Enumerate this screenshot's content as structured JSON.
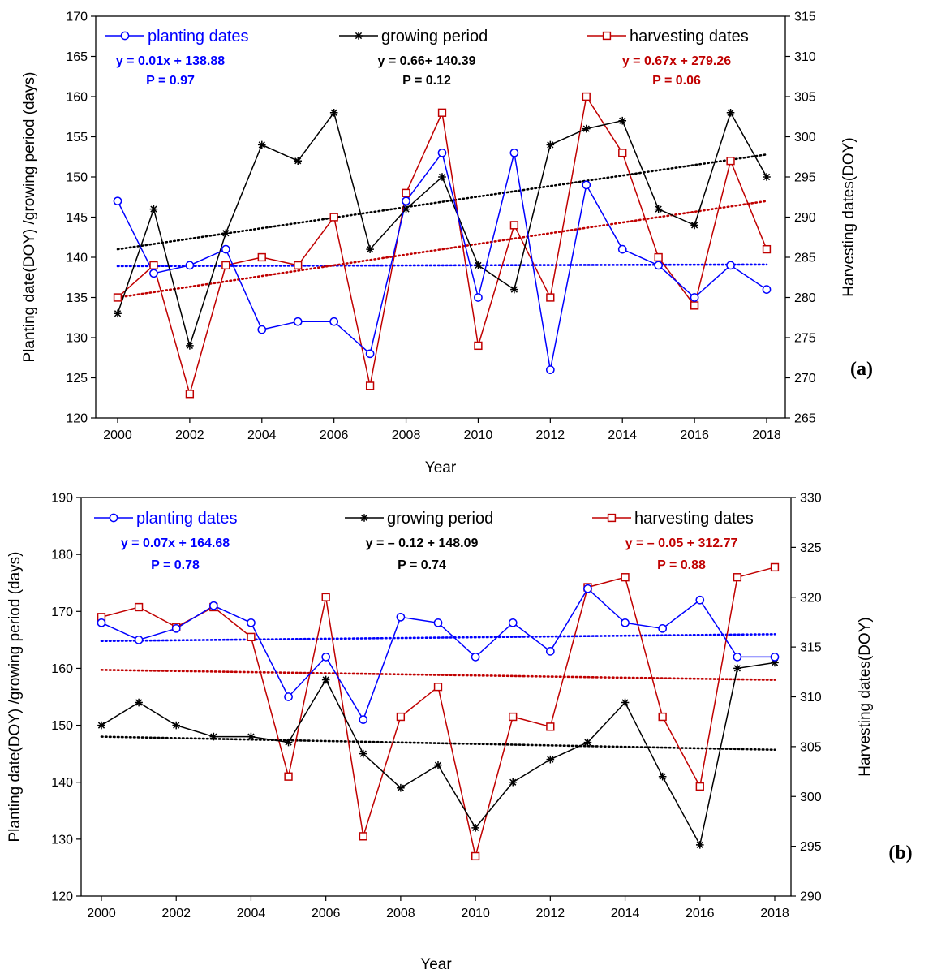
{
  "colors": {
    "planting": "#0000ff",
    "growing": "#000000",
    "harvesting": "#c00000"
  },
  "chart_data": [
    {
      "type": "line",
      "panel_label": "(a)",
      "xlabel": "Year",
      "ylabel": "Planting date(DOY) /growing period (days)",
      "y2label": "Harvesting dates(DOY)",
      "xlim": [
        2000,
        2018
      ],
      "xticks": [
        2000,
        2002,
        2004,
        2006,
        2008,
        2010,
        2012,
        2014,
        2016,
        2018
      ],
      "ylim": [
        120,
        170
      ],
      "yticks": [
        120,
        125,
        130,
        135,
        140,
        145,
        150,
        155,
        160,
        165,
        170
      ],
      "y2lim": [
        265,
        315
      ],
      "y2ticks": [
        265,
        270,
        275,
        280,
        285,
        290,
        295,
        300,
        305,
        310,
        315
      ],
      "legend": "top",
      "x": [
        2000,
        2001,
        2002,
        2003,
        2004,
        2005,
        2006,
        2007,
        2008,
        2009,
        2010,
        2011,
        2012,
        2013,
        2014,
        2015,
        2016,
        2017,
        2018
      ],
      "series": [
        {
          "key": "planting",
          "name": "planting dates",
          "axis": "left",
          "marker": "circle",
          "values": [
            147,
            138,
            139,
            141,
            131,
            132,
            132,
            128,
            147,
            153,
            135,
            153,
            126,
            149,
            141,
            139,
            135,
            139,
            136
          ],
          "trend": [
            138.9,
            139.1
          ],
          "equation": "y = 0.01x + 138.88",
          "p_value": "P = 0.97"
        },
        {
          "key": "growing",
          "name": "growing period",
          "axis": "left",
          "marker": "star",
          "values": [
            133,
            146,
            129,
            143,
            154,
            152,
            158,
            141,
            146,
            150,
            139,
            136,
            154,
            156,
            157,
            146,
            144,
            158,
            150
          ],
          "trend": [
            141,
            152.8
          ],
          "equation": "y = 0.66+ 140.39",
          "p_value": "P = 0.12"
        },
        {
          "key": "harvesting",
          "name": "harvesting dates",
          "axis": "right",
          "marker": "square",
          "values": [
            280,
            284,
            268,
            284,
            285,
            284,
            290,
            269,
            293,
            303,
            274,
            289,
            280,
            305,
            298,
            285,
            279,
            297,
            286
          ],
          "trend": [
            280,
            292
          ],
          "equation": "y = 0.67x + 279.26",
          "p_value": "P  = 0.06"
        }
      ]
    },
    {
      "type": "line",
      "panel_label": "(b)",
      "xlabel": "Year",
      "ylabel": "Planting date(DOY) /growing period (days)",
      "y2label": "Harvesting dates(DOY)",
      "xlim": [
        2000,
        2018
      ],
      "xticks": [
        2000,
        2002,
        2004,
        2006,
        2008,
        2010,
        2012,
        2014,
        2016,
        2018
      ],
      "ylim": [
        120,
        190
      ],
      "yticks": [
        120,
        130,
        140,
        150,
        160,
        170,
        180,
        190
      ],
      "y2lim": [
        290,
        330
      ],
      "y2ticks": [
        290,
        295,
        300,
        305,
        310,
        315,
        320,
        325,
        330
      ],
      "legend": "top",
      "x": [
        2000,
        2001,
        2002,
        2003,
        2004,
        2005,
        2006,
        2007,
        2008,
        2009,
        2010,
        2011,
        2012,
        2013,
        2014,
        2015,
        2016,
        2017,
        2018
      ],
      "series": [
        {
          "key": "planting",
          "name": "planting dates",
          "axis": "left",
          "marker": "circle",
          "values": [
            168,
            165,
            167,
            171,
            168,
            155,
            162,
            151,
            169,
            168,
            162,
            168,
            163,
            174,
            168,
            167,
            172,
            162,
            162
          ],
          "trend": [
            164.8,
            166
          ],
          "equation": "y = 0.07x + 164.68",
          "p_value": "P = 0.78"
        },
        {
          "key": "growing",
          "name": "growing period",
          "axis": "left",
          "marker": "star",
          "values": [
            150,
            154,
            150,
            148,
            148,
            147,
            158,
            145,
            139,
            143,
            132,
            140,
            144,
            147,
            154,
            141,
            129,
            160,
            161
          ],
          "trend": [
            148,
            145.7
          ],
          "equation": "y = – 0.12 + 148.09",
          "p_value": "P = 0.74"
        },
        {
          "key": "harvesting",
          "name": "harvesting dates",
          "axis": "right",
          "marker": "square",
          "values": [
            318,
            319,
            317,
            319,
            316,
            302,
            320,
            296,
            308,
            311,
            294,
            308,
            307,
            321,
            322,
            308,
            301,
            322,
            323
          ],
          "trend": [
            312.7,
            311.7
          ],
          "equation": "y = – 0.05 + 312.77",
          "p_value": "P  = 0.88"
        }
      ]
    }
  ]
}
